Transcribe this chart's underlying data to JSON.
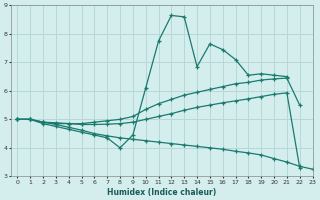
{
  "xlabel": "Humidex (Indice chaleur)",
  "xlim": [
    -0.5,
    23
  ],
  "ylim": [
    3,
    9
  ],
  "yticks": [
    3,
    4,
    5,
    6,
    7,
    8,
    9
  ],
  "xticks": [
    0,
    1,
    2,
    3,
    4,
    5,
    6,
    7,
    8,
    9,
    10,
    11,
    12,
    13,
    14,
    15,
    16,
    17,
    18,
    19,
    20,
    21,
    22,
    23
  ],
  "bg_color": "#d4eeee",
  "line_color": "#1a7a6e",
  "grid_color": "#b8d8d8",
  "lines": [
    {
      "x": [
        0,
        1,
        2,
        3,
        4,
        5,
        6,
        7,
        8,
        9,
        10,
        11,
        12,
        13,
        14,
        15,
        16,
        17,
        18,
        19,
        20,
        21
      ],
      "y": [
        5.0,
        5.0,
        4.85,
        4.75,
        4.65,
        4.55,
        4.45,
        4.35,
        4.0,
        4.45,
        6.1,
        7.75,
        8.65,
        8.6,
        6.85,
        7.65,
        7.45,
        7.1,
        6.55,
        6.6,
        6.55,
        6.5
      ]
    },
    {
      "x": [
        0,
        1,
        2,
        3,
        4,
        5,
        6,
        7,
        8,
        9,
        10,
        11,
        12,
        13,
        14,
        15,
        16,
        17,
        18,
        19,
        20,
        21,
        22
      ],
      "y": [
        5.0,
        5.0,
        4.9,
        4.85,
        4.85,
        4.85,
        4.9,
        4.95,
        5.0,
        5.1,
        5.35,
        5.55,
        5.7,
        5.85,
        5.95,
        6.05,
        6.15,
        6.25,
        6.3,
        6.38,
        6.42,
        6.45,
        5.5
      ]
    },
    {
      "x": [
        0,
        1,
        2,
        3,
        4,
        5,
        6,
        7,
        8,
        9,
        10,
        11,
        12,
        13,
        14,
        15,
        16,
        17,
        18,
        19,
        20,
        21,
        22
      ],
      "y": [
        5.0,
        5.0,
        4.9,
        4.88,
        4.85,
        4.82,
        4.82,
        4.83,
        4.85,
        4.9,
        5.0,
        5.1,
        5.2,
        5.32,
        5.42,
        5.5,
        5.58,
        5.65,
        5.72,
        5.8,
        5.88,
        5.93,
        3.3
      ]
    },
    {
      "x": [
        0,
        1,
        2,
        3,
        4,
        5,
        6,
        7,
        8,
        9,
        10,
        11,
        12,
        13,
        14,
        15,
        16,
        17,
        18,
        19,
        20,
        21,
        22,
        23
      ],
      "y": [
        5.0,
        5.0,
        4.9,
        4.82,
        4.72,
        4.62,
        4.5,
        4.42,
        4.35,
        4.3,
        4.25,
        4.2,
        4.15,
        4.1,
        4.05,
        4.0,
        3.95,
        3.88,
        3.82,
        3.75,
        3.62,
        3.5,
        3.35,
        3.25
      ]
    }
  ]
}
